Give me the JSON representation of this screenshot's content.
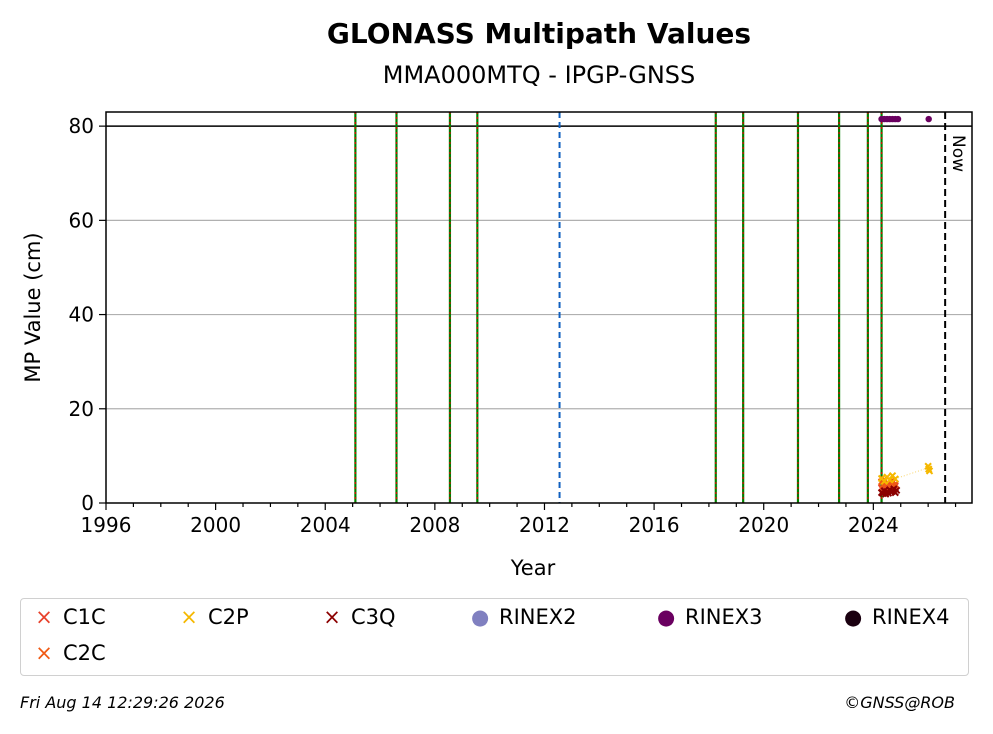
{
  "chart_data": {
    "type": "scatter",
    "title": "GLONASS Multipath Values",
    "subtitle": "MMA000MTQ - IPGP-GNSS",
    "xlabel": "Year",
    "ylabel": "MP Value (cm)",
    "xlim": [
      1996,
      2027.6
    ],
    "ylim": [
      0,
      83
    ],
    "xticks": [
      "1996",
      "2000",
      "2004",
      "2008",
      "2012",
      "2016",
      "2020",
      "2024"
    ],
    "yticks": [
      "0",
      "20",
      "40",
      "60",
      "80"
    ],
    "grid": "horizontal",
    "reference_line": 80,
    "event_lines_green_red": [
      2005.1,
      2006.6,
      2008.55,
      2009.55,
      2018.25,
      2019.25,
      2021.25,
      2022.75,
      2023.8,
      2024.3
    ],
    "event_lines_blue": [
      2012.55
    ],
    "now_line": {
      "x": 2026.62,
      "label": "Now"
    },
    "legend_position": "below",
    "series": [
      {
        "name": "C1C",
        "color": "#e8412b",
        "marker": "x",
        "points": [
          [
            2024.3,
            3.2
          ],
          [
            2024.35,
            2.8
          ],
          [
            2024.4,
            4.1
          ],
          [
            2024.45,
            3.5
          ],
          [
            2024.5,
            2.6
          ],
          [
            2024.55,
            3.9
          ],
          [
            2024.6,
            3.1
          ],
          [
            2024.7,
            4.4
          ],
          [
            2024.75,
            2.9
          ],
          [
            2024.8,
            3.6
          ]
        ]
      },
      {
        "name": "C2C",
        "color": "#f05a14",
        "marker": "x",
        "points": [
          [
            2024.3,
            4.5
          ],
          [
            2024.35,
            3.8
          ],
          [
            2024.4,
            5.0
          ],
          [
            2024.5,
            4.2
          ],
          [
            2024.6,
            3.5
          ],
          [
            2024.7,
            4.8
          ],
          [
            2024.8,
            4.0
          ]
        ]
      },
      {
        "name": "C2P",
        "color": "#f5b800",
        "marker": "x",
        "points": [
          [
            2024.3,
            5.2
          ],
          [
            2024.4,
            4.6
          ],
          [
            2024.5,
            5.5
          ],
          [
            2024.6,
            4.9
          ],
          [
            2024.7,
            5.8
          ],
          [
            2024.8,
            5.1
          ],
          [
            2026.0,
            7.8
          ],
          [
            2026.02,
            7.2
          ],
          [
            2026.05,
            6.8
          ]
        ]
      },
      {
        "name": "C3Q",
        "color": "#8b0000",
        "marker": "x",
        "points": [
          [
            2024.3,
            2.2
          ],
          [
            2024.35,
            2.0
          ],
          [
            2024.4,
            2.6
          ],
          [
            2024.45,
            1.9
          ],
          [
            2024.5,
            2.4
          ],
          [
            2024.55,
            2.1
          ],
          [
            2024.6,
            2.8
          ],
          [
            2024.65,
            2.3
          ],
          [
            2024.7,
            2.5
          ],
          [
            2024.75,
            3.0
          ],
          [
            2024.8,
            2.2
          ],
          [
            2024.85,
            2.7
          ]
        ]
      },
      {
        "name": "RINEX2",
        "color": "#8080c0",
        "marker": "o",
        "points": []
      },
      {
        "name": "RINEX3",
        "color": "#6a0060",
        "marker": "o",
        "points": [
          [
            2024.3,
            81.5
          ],
          [
            2024.4,
            81.5
          ],
          [
            2024.5,
            81.5
          ],
          [
            2024.6,
            81.5
          ],
          [
            2024.7,
            81.5
          ],
          [
            2024.8,
            81.5
          ],
          [
            2024.9,
            81.5
          ],
          [
            2026.02,
            81.5
          ]
        ]
      },
      {
        "name": "RINEX4",
        "color": "#1a0010",
        "marker": "o",
        "points": []
      }
    ]
  },
  "legend": {
    "items": [
      "C1C",
      "C2P",
      "C3Q",
      "RINEX2",
      "RINEX3",
      "RINEX4",
      "C2C"
    ]
  },
  "footer": {
    "timestamp": "Fri Aug 14 12:29:26 2026",
    "copyright": "©GNSS@ROB"
  }
}
